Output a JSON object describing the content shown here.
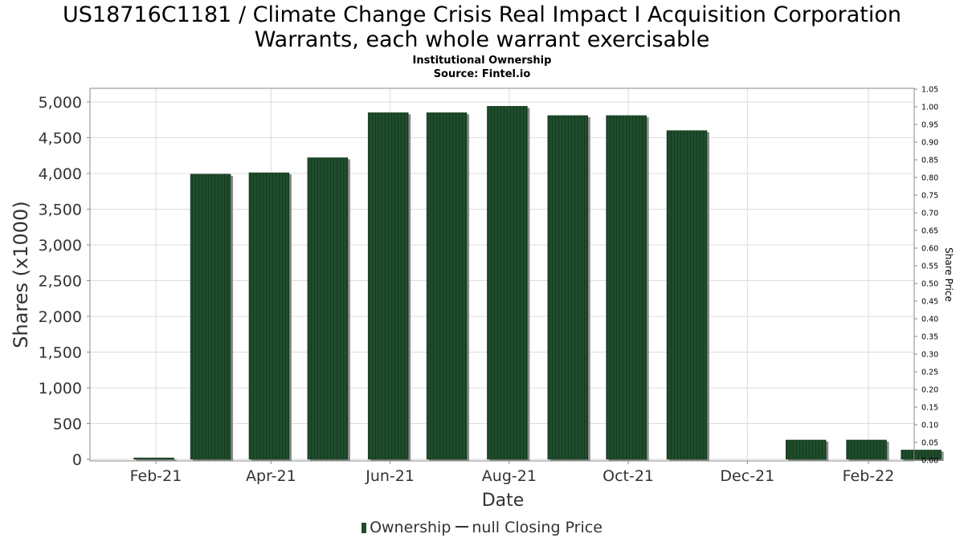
{
  "title_lines": [
    "US18716C1181 / Climate Change Crisis Real Impact I Acquisition Corporation",
    "Warrants, each whole warrant exercisable"
  ],
  "subtitle_lines": [
    "Institutional Ownership",
    "Source: Fintel.io"
  ],
  "legend": {
    "ownership_label": "Ownership",
    "price_label": "null Closing Price"
  },
  "colors": {
    "bar": "#1f4d2b",
    "bar_shadow": "#8a8a8a",
    "grid": "#dcdcdc",
    "axis_text": "#333333"
  },
  "chart_data": {
    "type": "bar",
    "xlabel": "Date",
    "ylabel": "Shares (x1000)",
    "y2label": "Share Price",
    "ylim": [
      0,
      5200
    ],
    "y2lim": [
      0,
      1.05
    ],
    "yticks": [
      0,
      500,
      1000,
      1500,
      2000,
      2500,
      3000,
      3500,
      4000,
      4500,
      5000
    ],
    "ytick_labels": [
      "0",
      "500",
      "1,000",
      "1,500",
      "2,000",
      "2,500",
      "3,000",
      "3,500",
      "4,000",
      "4,500",
      "5,000"
    ],
    "y2ticks": [
      "0.00",
      "0.05",
      "0.10",
      "0.15",
      "0.20",
      "0.25",
      "0.30",
      "0.35",
      "0.40",
      "0.45",
      "0.50",
      "0.55",
      "0.60",
      "0.65",
      "0.70",
      "0.75",
      "0.80",
      "0.85",
      "0.90",
      "0.95",
      "1.00",
      "1.05"
    ],
    "xtick_labels": [
      "Feb-21",
      "Apr-21",
      "Jun-21",
      "Aug-21",
      "Oct-21",
      "Dec-21",
      "Feb-22"
    ],
    "grid": true,
    "legend_position": "bottom",
    "series": [
      {
        "name": "Ownership",
        "bars": [
          {
            "date": "2021-01-31",
            "value": 20
          },
          {
            "date": "2021-03-01",
            "value": 3990
          },
          {
            "date": "2021-03-31",
            "value": 4010
          },
          {
            "date": "2021-04-30",
            "value": 4220
          },
          {
            "date": "2021-05-31",
            "value": 4850
          },
          {
            "date": "2021-06-30",
            "value": 4850
          },
          {
            "date": "2021-07-31",
            "value": 4940
          },
          {
            "date": "2021-08-31",
            "value": 4810
          },
          {
            "date": "2021-09-30",
            "value": 4810
          },
          {
            "date": "2021-10-31",
            "value": 4600
          },
          {
            "date": "2021-12-31",
            "value": 270
          },
          {
            "date": "2022-01-31",
            "value": 270
          },
          {
            "date": "2022-02-28",
            "value": 130
          }
        ]
      }
    ]
  }
}
